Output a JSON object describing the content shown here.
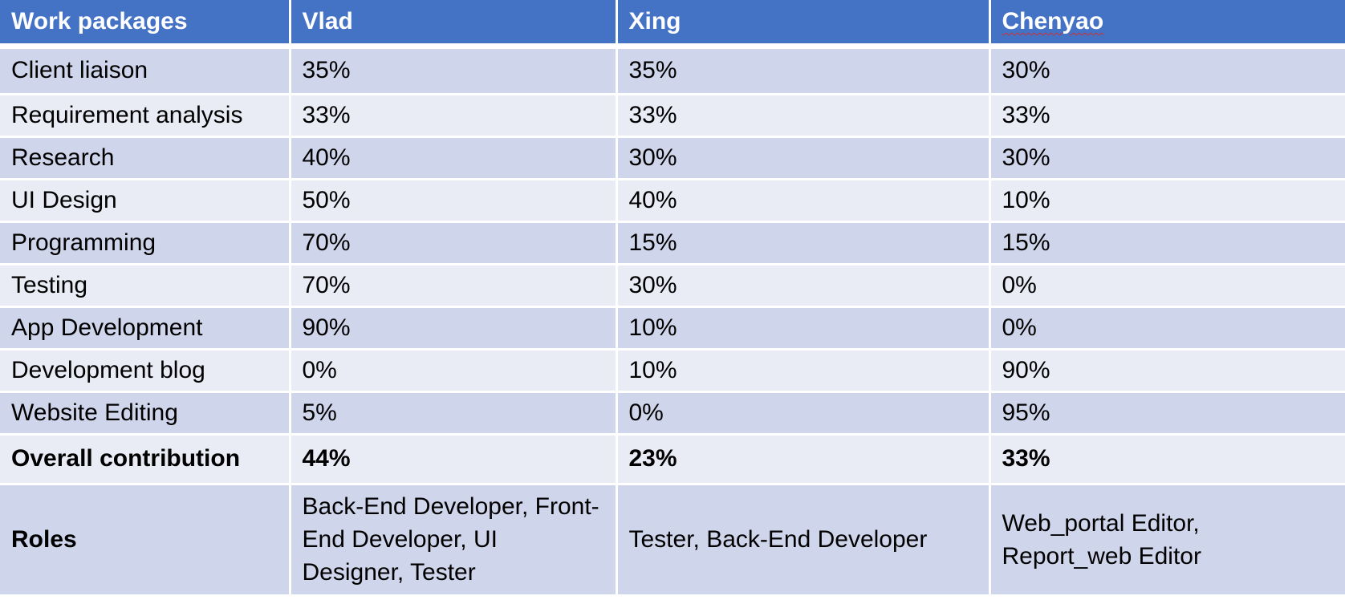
{
  "header": {
    "col0": "Work packages",
    "col1": "Vlad",
    "col2": "Xing",
    "col3": "Chenyao"
  },
  "rows": [
    {
      "package": "Client liaison",
      "vlad": "35%",
      "xing": "35%",
      "chenyao": "30%"
    },
    {
      "package": "Requirement analysis",
      "vlad": "33%",
      "xing": "33%",
      "chenyao": "33%"
    },
    {
      "package": "Research",
      "vlad": "40%",
      "xing": "30%",
      "chenyao": "30%"
    },
    {
      "package": "UI Design",
      "vlad": "50%",
      "xing": "40%",
      "chenyao": "10%"
    },
    {
      "package": "Programming",
      "vlad": "70%",
      "xing": "15%",
      "chenyao": "15%"
    },
    {
      "package": "Testing",
      "vlad": "70%",
      "xing": "30%",
      "chenyao": "0%"
    },
    {
      "package": "App Development",
      "vlad": "90%",
      "xing": "10%",
      "chenyao": "0%"
    },
    {
      "package": "Development blog",
      "vlad": "0%",
      "xing": "10%",
      "chenyao": "90%"
    },
    {
      "package": "Website Editing",
      "vlad": "5%",
      "xing": "0%",
      "chenyao": "95%"
    }
  ],
  "overall": {
    "label": "Overall contribution",
    "vlad": "44%",
    "xing": "23%",
    "chenyao": "33%"
  },
  "roles": {
    "label": "Roles",
    "vlad": "Back-End Developer, Front-End Developer, UI Designer, Tester",
    "xing": "Tester, Back-End Developer",
    "chenyao": "Web_portal Editor, Report_web Editor"
  },
  "colors": {
    "header_bg": "#4472c4",
    "row_odd_bg": "#cfd5ea",
    "row_even_bg": "#e9ebf5"
  }
}
